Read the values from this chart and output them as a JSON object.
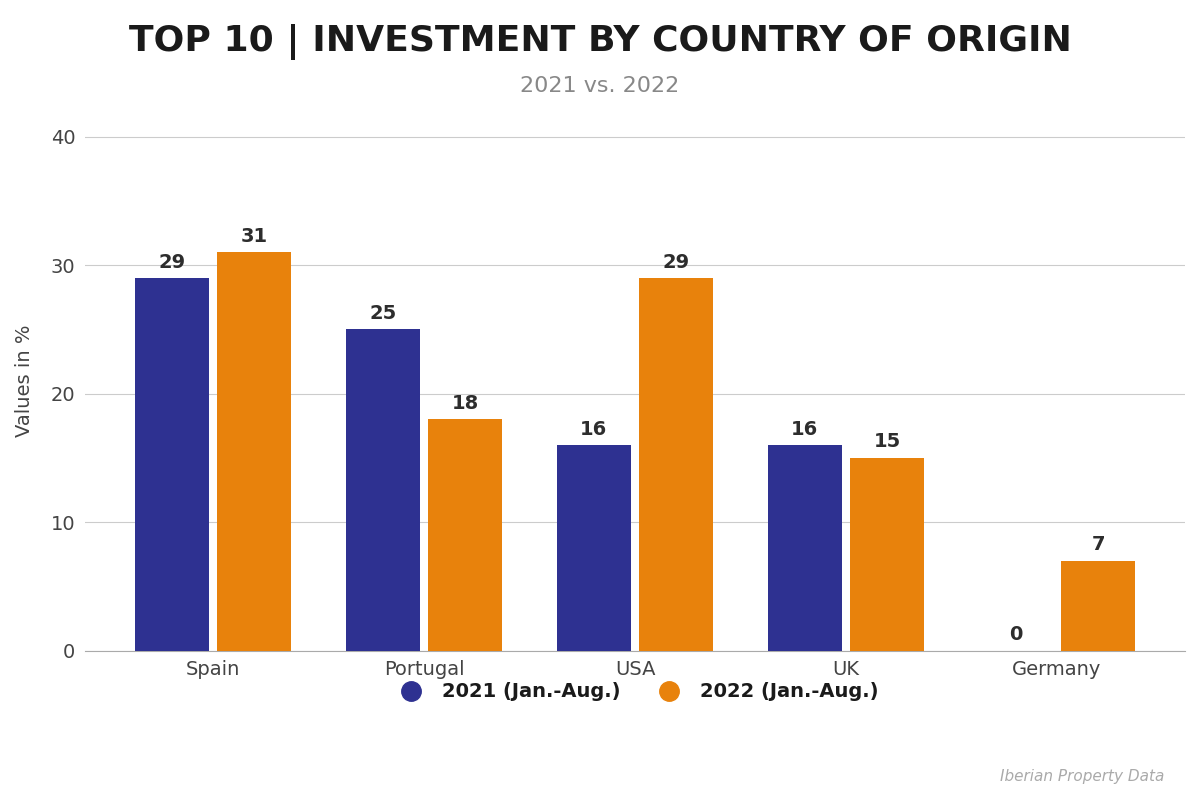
{
  "title": "TOP 10 | INVESTMENT BY COUNTRY OF ORIGIN",
  "subtitle": "2021 vs. 2022",
  "categories": [
    "Spain",
    "Portugal",
    "USA",
    "UK",
    "Germany"
  ],
  "values_2021": [
    29,
    25,
    16,
    16,
    0
  ],
  "values_2022": [
    31,
    18,
    29,
    15,
    7
  ],
  "color_2021": "#2E3191",
  "color_2022": "#E8820C",
  "ylabel": "Values in %",
  "ylim": [
    0,
    42
  ],
  "yticks": [
    0,
    10,
    20,
    30,
    40
  ],
  "legend_2021": "2021 (Jan.-Aug.)",
  "legend_2022": "2022 (Jan.-Aug.)",
  "watermark": "Iberian Property Data",
  "background_color": "#FFFFFF",
  "title_fontsize": 26,
  "subtitle_fontsize": 16,
  "label_fontsize": 14,
  "tick_fontsize": 14,
  "bar_label_fontsize": 14,
  "legend_fontsize": 14
}
